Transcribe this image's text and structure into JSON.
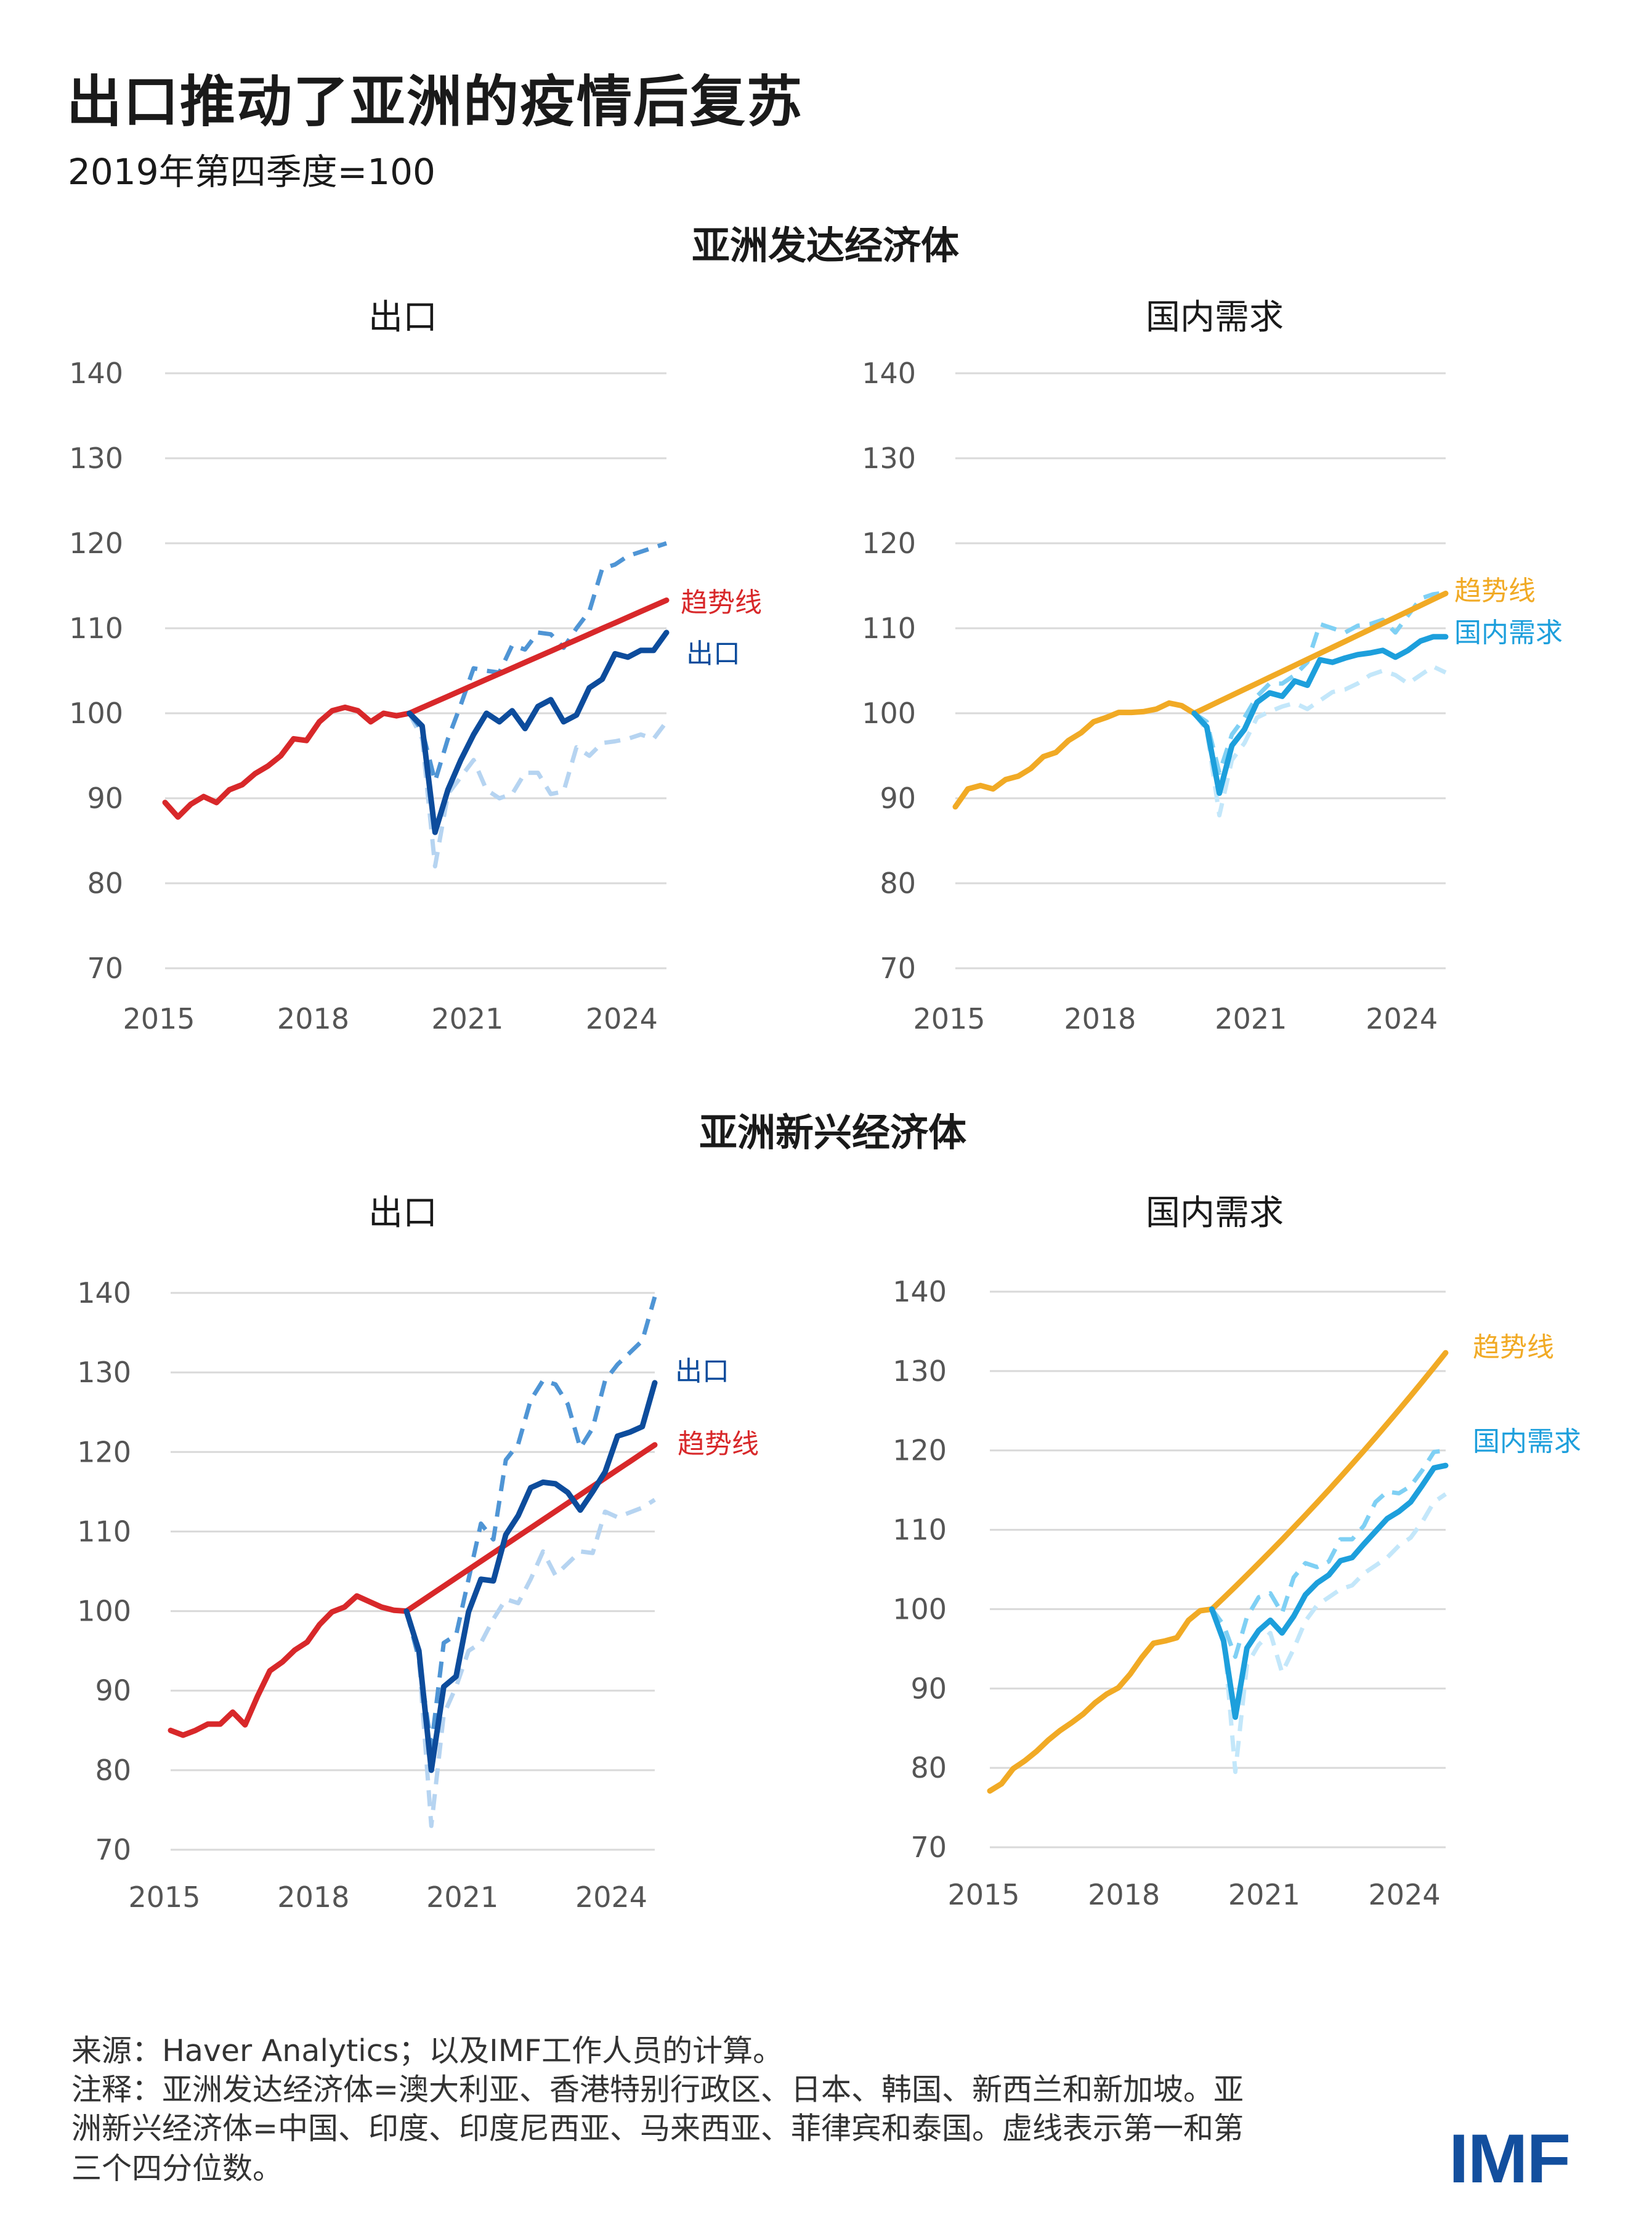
{
  "title": "出口推动了亚洲的疫情后复苏",
  "subtitle": "2019年第四季度=100",
  "sections": [
    {
      "heading": "亚洲发达经济体"
    },
    {
      "heading": "亚洲新兴经济体"
    }
  ],
  "footer": {
    "source": "来源：Haver Analytics；以及IMF工作人员的计算。",
    "note_lines": [
      "注释：亚洲发达经济体=澳大利亚、香港特别行政区、日本、韩国、新西兰和新加坡。亚",
      "洲新兴经济体=中国、印度、印度尼西亚、马来西亚、菲律宾和泰国。虚线表示第一和第",
      "三个四分位数。"
    ],
    "logo": "IMF"
  },
  "colors": {
    "exports_trend": "#d8282a",
    "exports_median": "#0d4c9c",
    "exports_q3": "#4f95d5",
    "exports_q1": "#b6d4f1",
    "dd_trend": "#f1aa25",
    "dd_median": "#1d9fdc",
    "dd_q3": "#7fd0f4",
    "dd_q1": "#c3e7fa"
  },
  "chart_data": [
    {
      "id": "ae-exports",
      "type": "line",
      "section": "亚洲发达经济体",
      "title": "出口",
      "xlabel": "",
      "ylabel": "",
      "ylim": [
        70,
        140
      ],
      "yticks": [
        "140",
        "130",
        "120",
        "110",
        "100",
        "90",
        "80",
        "70"
      ],
      "xticks": [
        "2015",
        "2018",
        "2021",
        "2024"
      ],
      "x_range": [
        "2015Q1",
        "2024Q4"
      ],
      "grid": true,
      "kind": "exports",
      "history_2015Q1_2019Q4": [
        89.5,
        87.8,
        89.3,
        90.2,
        89.5,
        91.0,
        91.6,
        92.9,
        93.8,
        95.0,
        97.0,
        96.8,
        99.0,
        100.3,
        100.7,
        100.3,
        99.0,
        100.0,
        99.7,
        100.0
      ],
      "trend": {
        "label": "趋势线",
        "from": 100,
        "to": 113.3,
        "shape": "linear"
      },
      "median_2020Q1_2024Q4": {
        "label": "出口",
        "values": [
          98.5,
          86.0,
          91.0,
          94.5,
          97.5,
          100.0,
          99.0,
          100.3,
          98.2,
          100.8,
          101.6,
          99.0,
          99.8,
          103.0,
          104.0,
          107.0,
          106.6,
          107.4,
          107.4,
          109.5
        ]
      },
      "q3_2020Q1_2024Q4": [
        98.0,
        92.0,
        97.0,
        101.0,
        105.3,
        105.0,
        104.8,
        108.0,
        107.5,
        109.5,
        109.3,
        107.7,
        110.0,
        112.0,
        117.0,
        117.5,
        118.5,
        119.0,
        119.5,
        120.0
      ],
      "q1_2020Q1_2024Q4": [
        97.0,
        82.0,
        90.5,
        92.5,
        94.5,
        91.0,
        90.0,
        90.5,
        93.0,
        93.0,
        90.5,
        90.8,
        96.0,
        95.0,
        96.5,
        96.7,
        97.0,
        97.5,
        97.0,
        99.0
      ],
      "legend_order": [
        "trend",
        "median"
      ]
    },
    {
      "id": "ae-dd",
      "type": "line",
      "section": "亚洲发达经济体",
      "title": "国内需求",
      "xlabel": "",
      "ylabel": "",
      "ylim": [
        70,
        140
      ],
      "yticks": [
        "140",
        "130",
        "120",
        "110",
        "100",
        "90",
        "80",
        "70"
      ],
      "xticks": [
        "2015",
        "2018",
        "2021",
        "2024"
      ],
      "x_range": [
        "2015Q1",
        "2024Q4"
      ],
      "grid": true,
      "kind": "dd",
      "history_2015Q1_2019Q4": [
        89.0,
        91.1,
        91.5,
        91.1,
        92.2,
        92.6,
        93.5,
        94.9,
        95.4,
        96.8,
        97.7,
        99.0,
        99.5,
        100.1,
        100.1,
        100.2,
        100.5,
        101.2,
        100.9,
        100.0
      ],
      "trend": {
        "label": "趋势线",
        "from": 100,
        "to": 114.1,
        "shape": "linear"
      },
      "median_2020Q1_2024Q4": {
        "label": "国内需求",
        "values": [
          98.4,
          90.6,
          96.2,
          98.1,
          101.3,
          102.4,
          102.0,
          103.8,
          103.3,
          106.3,
          106.0,
          106.5,
          106.9,
          107.1,
          107.4,
          106.6,
          107.4,
          108.5,
          109.0,
          109.0
        ]
      },
      "q3_2020Q1_2024Q4": [
        99.0,
        93.0,
        97.5,
        99.5,
        102.0,
        103.5,
        103.5,
        104.5,
        106.0,
        110.5,
        110.0,
        109.5,
        110.3,
        110.5,
        111.0,
        109.5,
        111.5,
        113.5,
        114.0,
        114.2
      ],
      "q1_2020Q1_2024Q4": [
        98.0,
        88.0,
        94.5,
        96.5,
        99.5,
        100.2,
        100.8,
        101.2,
        100.5,
        101.5,
        102.5,
        102.8,
        103.5,
        104.5,
        105.0,
        104.5,
        103.5,
        104.5,
        105.5,
        104.8
      ],
      "legend_order": [
        "trend",
        "median"
      ]
    },
    {
      "id": "em-exports",
      "type": "line",
      "section": "亚洲新兴经济体",
      "title": "出口",
      "xlabel": "",
      "ylabel": "",
      "ylim": [
        70,
        140
      ],
      "yticks": [
        "140",
        "130",
        "120",
        "110",
        "100",
        "90",
        "80",
        "70"
      ],
      "xticks": [
        "2015",
        "2018",
        "2021",
        "2024"
      ],
      "x_range": [
        "2015Q1",
        "2024Q4"
      ],
      "grid": true,
      "kind": "exports",
      "history_2015Q1_2019Q4": [
        85.0,
        84.4,
        85.0,
        85.8,
        85.8,
        87.3,
        85.7,
        89.3,
        92.5,
        93.6,
        95.1,
        96.1,
        98.3,
        99.9,
        100.5,
        101.9,
        101.2,
        100.5,
        100.1,
        100.0
      ],
      "trend": {
        "label": "趋势线",
        "from": 100,
        "to": 120.9,
        "shape": "linear"
      },
      "median_2020Q1_2024Q4": {
        "label": "出口",
        "values": [
          95.0,
          80.0,
          90.5,
          91.8,
          99.9,
          104.0,
          103.8,
          109.6,
          112.0,
          115.5,
          116.2,
          116.0,
          114.9,
          112.7,
          115.0,
          117.5,
          122.0,
          122.5,
          123.2,
          128.7
        ]
      },
      "q3_2020Q1_2024Q4": [
        94.0,
        83.0,
        96.0,
        97.0,
        104.0,
        111.0,
        109.0,
        119.0,
        121.0,
        126.5,
        129.0,
        128.5,
        126.0,
        120.5,
        123.0,
        129.0,
        131.0,
        132.5,
        134.0,
        139.5
      ],
      "q1_2020Q1_2024Q4": [
        94.0,
        73.0,
        87.0,
        90.5,
        95.0,
        96.0,
        99.0,
        101.5,
        101.0,
        104.0,
        107.5,
        104.5,
        106.0,
        107.5,
        107.3,
        112.5,
        111.8,
        112.4,
        113.0,
        114.0
      ],
      "legend_order": [
        "median",
        "trend"
      ]
    },
    {
      "id": "em-dd",
      "type": "line",
      "section": "亚洲新兴经济体",
      "title": "国内需求",
      "xlabel": "",
      "ylabel": "",
      "ylim": [
        70,
        140
      ],
      "yticks": [
        "140",
        "130",
        "120",
        "110",
        "100",
        "90",
        "80",
        "70"
      ],
      "xticks": [
        "2015",
        "2018",
        "2021",
        "2024"
      ],
      "x_range": [
        "2015Q1",
        "2024Q4"
      ],
      "grid": true,
      "kind": "dd",
      "history_2015Q1_2019Q4": [
        77.1,
        78.0,
        79.9,
        80.9,
        82.1,
        83.5,
        84.7,
        85.7,
        86.8,
        88.2,
        89.3,
        90.1,
        91.8,
        93.9,
        95.7,
        96.0,
        96.4,
        98.6,
        99.8,
        100.0
      ],
      "trend": {
        "label": "趋势线",
        "from": 100,
        "to": 132.3,
        "shape": "exponential"
      },
      "median_2020Q1_2024Q4": {
        "label": "国内需求",
        "values": [
          96.0,
          86.4,
          95.1,
          97.3,
          98.6,
          97.0,
          99.1,
          101.8,
          103.3,
          104.3,
          106.1,
          106.5,
          108.2,
          109.8,
          111.4,
          112.3,
          113.5,
          115.6,
          117.8,
          118.1
        ]
      },
      "q3_2020Q1_2024Q4": [
        98.0,
        94.0,
        99.0,
        101.5,
        102.0,
        99.5,
        104.0,
        105.8,
        105.3,
        106.0,
        108.8,
        108.8,
        110.5,
        113.5,
        114.8,
        114.6,
        115.5,
        117.5,
        119.8,
        120.0
      ],
      "q1_2020Q1_2024Q4": [
        97.0,
        79.5,
        93.0,
        95.5,
        97.0,
        92.0,
        95.0,
        98.5,
        100.5,
        101.5,
        102.5,
        103.0,
        104.5,
        105.5,
        106.5,
        108.0,
        109.0,
        111.0,
        113.5,
        114.5
      ],
      "legend_order": [
        "trend",
        "median"
      ]
    }
  ]
}
